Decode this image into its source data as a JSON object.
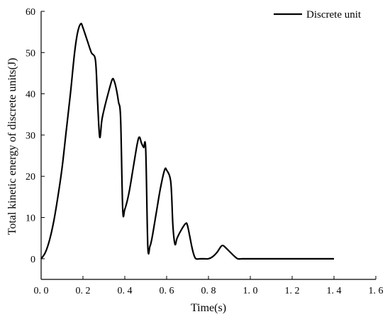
{
  "chart_data": {
    "type": "line",
    "xlabel": "Time(s)",
    "ylabel": "Total kinetic energy of discrete units(J)",
    "xlim": [
      0.0,
      1.6
    ],
    "ylim": [
      -5,
      60
    ],
    "x_ticks": [
      0.0,
      0.2,
      0.4,
      0.6,
      0.8,
      1.0,
      1.2,
      1.4,
      1.6
    ],
    "x_tick_labels": [
      "0. 0",
      "0. 2",
      "0. 4",
      "0. 6",
      "0. 8",
      "1. 0",
      "1. 2",
      "1. 4",
      "1. 6"
    ],
    "y_ticks": [
      0,
      10,
      20,
      30,
      40,
      50,
      60
    ],
    "y_tick_labels": [
      "0",
      "10",
      "20",
      "30",
      "40",
      "50",
      "60"
    ],
    "grid": false,
    "legend_position": "top-right",
    "colors": {
      "line": "#000000"
    },
    "series": [
      {
        "name": "Discrete unit",
        "x": [
          0.0,
          0.02,
          0.04,
          0.06,
          0.08,
          0.1,
          0.12,
          0.14,
          0.16,
          0.175,
          0.19,
          0.2,
          0.22,
          0.24,
          0.26,
          0.27,
          0.28,
          0.29,
          0.3,
          0.32,
          0.34,
          0.35,
          0.36,
          0.37,
          0.38,
          0.39,
          0.4,
          0.42,
          0.44,
          0.46,
          0.47,
          0.48,
          0.49,
          0.5,
          0.51,
          0.52,
          0.53,
          0.55,
          0.57,
          0.59,
          0.6,
          0.62,
          0.63,
          0.64,
          0.65,
          0.67,
          0.69,
          0.7,
          0.72,
          0.73,
          0.74,
          0.76,
          0.78,
          0.8,
          0.82,
          0.84,
          0.86,
          0.87,
          0.88,
          0.9,
          0.92,
          0.94,
          0.96,
          1.0,
          1.1,
          1.2,
          1.3,
          1.4
        ],
        "y": [
          0,
          1.5,
          4.5,
          9,
          15,
          22,
          31,
          40,
          50,
          55,
          57,
          56,
          53,
          50,
          48,
          38,
          29.5,
          33.5,
          36,
          40,
          43.5,
          43,
          41,
          38,
          34,
          12,
          12,
          16,
          22,
          28,
          29.5,
          28,
          27,
          26.5,
          3,
          3,
          5,
          11,
          17,
          21.5,
          21.5,
          18.5,
          8,
          3.5,
          5,
          7,
          8.5,
          8,
          3,
          1,
          0,
          0,
          0,
          0,
          0.5,
          1.5,
          3,
          3.2,
          2.8,
          1.8,
          0.8,
          0,
          0,
          0,
          0,
          0,
          0,
          0
        ]
      }
    ]
  }
}
